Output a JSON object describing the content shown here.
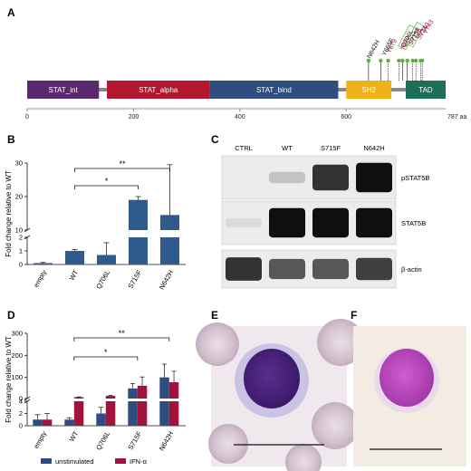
{
  "panels": {
    "a": {
      "letter": "A",
      "domains": [
        {
          "label": "STAT_int",
          "start": 0,
          "end": 135,
          "color": "#5b2a6e"
        },
        {
          "label": "STAT_alpha",
          "start": 150,
          "end": 343,
          "color": "#b3162f"
        },
        {
          "label": "STAT_bind",
          "start": 343,
          "end": 585,
          "color": "#2f4d7e"
        },
        {
          "label": "SH2",
          "start": 600,
          "end": 685,
          "color": "#f0b21b"
        },
        {
          "label": "TAD",
          "start": 712,
          "end": 787,
          "color": "#1f6e5a"
        }
      ],
      "axis_ticks": [
        0,
        200,
        400,
        600
      ],
      "axis_end_label": "787 aa",
      "mutations": [
        {
          "label": "N642H",
          "pos": 642,
          "color": "#111111",
          "boxed": false
        },
        {
          "label": "Y665F",
          "pos": 665,
          "color": "#111111",
          "boxed": false
        },
        {
          "label": "Y679",
          "pos": 679,
          "color": "#a0143c",
          "boxed": false
        },
        {
          "label": "Y699",
          "pos": 699,
          "color": "#a0143c",
          "boxed": false
        },
        {
          "label": "Q706L",
          "pos": 706,
          "color": "#111111",
          "boxed": true
        },
        {
          "label": "S715F",
          "pos": 715,
          "color": "#111111",
          "boxed": true
        },
        {
          "label": "Y725",
          "pos": 725,
          "color": "#a0143c",
          "boxed": false
        },
        {
          "label": "S731",
          "pos": 731,
          "color": "#a0143c",
          "boxed": false
        },
        {
          "label": "Y740",
          "pos": 740,
          "color": "#a0143c",
          "boxed": false
        },
        {
          "label": "Y743",
          "pos": 743,
          "color": "#a0143c",
          "boxed": false
        }
      ]
    },
    "b": {
      "letter": "B",
      "chart_data": {
        "type": "bar",
        "categories": [
          "empty",
          "WT",
          "Q706L",
          "S715F",
          "N642H"
        ],
        "values": [
          0.1,
          1.0,
          0.7,
          19.0,
          14.5
        ],
        "errors": [
          0.05,
          0.1,
          0.9,
          1.0,
          15.0
        ],
        "ylabel": "Fold change relative to WT",
        "yticks_lower": [
          0,
          1,
          2
        ],
        "yticks_upper": [
          10,
          20,
          30
        ],
        "broken_axis": true,
        "color": "#2f5a8c",
        "significance": [
          {
            "from": "WT",
            "to": "S715F",
            "label": "*"
          },
          {
            "from": "WT",
            "to": "N642H",
            "label": "**"
          }
        ]
      }
    },
    "c": {
      "letter": "C",
      "lanes": [
        "CTRL",
        "WT",
        "S715F",
        "N642H"
      ],
      "blots": [
        {
          "label": "pSTAT5B",
          "intensities": [
            0.0,
            0.25,
            0.85,
            1.0
          ]
        },
        {
          "label": "STAT5B",
          "intensities": [
            0.15,
            1.0,
            1.0,
            1.0
          ]
        },
        {
          "label": "β-actin",
          "intensities": [
            0.85,
            0.7,
            0.7,
            0.8
          ]
        }
      ]
    },
    "d": {
      "letter": "D",
      "chart_data": {
        "type": "bar",
        "categories": [
          "empty",
          "WT",
          "Q706L",
          "S715F",
          "N642H"
        ],
        "series": [
          {
            "name": "unstimulated",
            "color": "#2f4d7e",
            "values": [
              1.0,
              1.0,
              2.0,
              50,
              100
            ],
            "errors": [
              0.8,
              0.3,
              1.0,
              22,
              60
            ]
          },
          {
            "name": "IFN-α",
            "color": "#a0143c",
            "values": [
              1.0,
              10,
              16,
              62,
              78
            ],
            "errors": [
              1.0,
              1.5,
              3,
              40,
              50
            ]
          }
        ],
        "ylabel": "Fold change relative to WT",
        "yticks_lower": [
          0,
          2,
          4
        ],
        "yticks_upper": [
          0,
          100,
          200,
          300
        ],
        "broken_axis": true,
        "significance": [
          {
            "from": "WT",
            "to": "S715F",
            "label": "*"
          },
          {
            "from": "WT",
            "to": "N642H",
            "label": "**"
          }
        ]
      }
    },
    "e": {
      "letter": "E"
    },
    "f": {
      "letter": "F"
    }
  }
}
